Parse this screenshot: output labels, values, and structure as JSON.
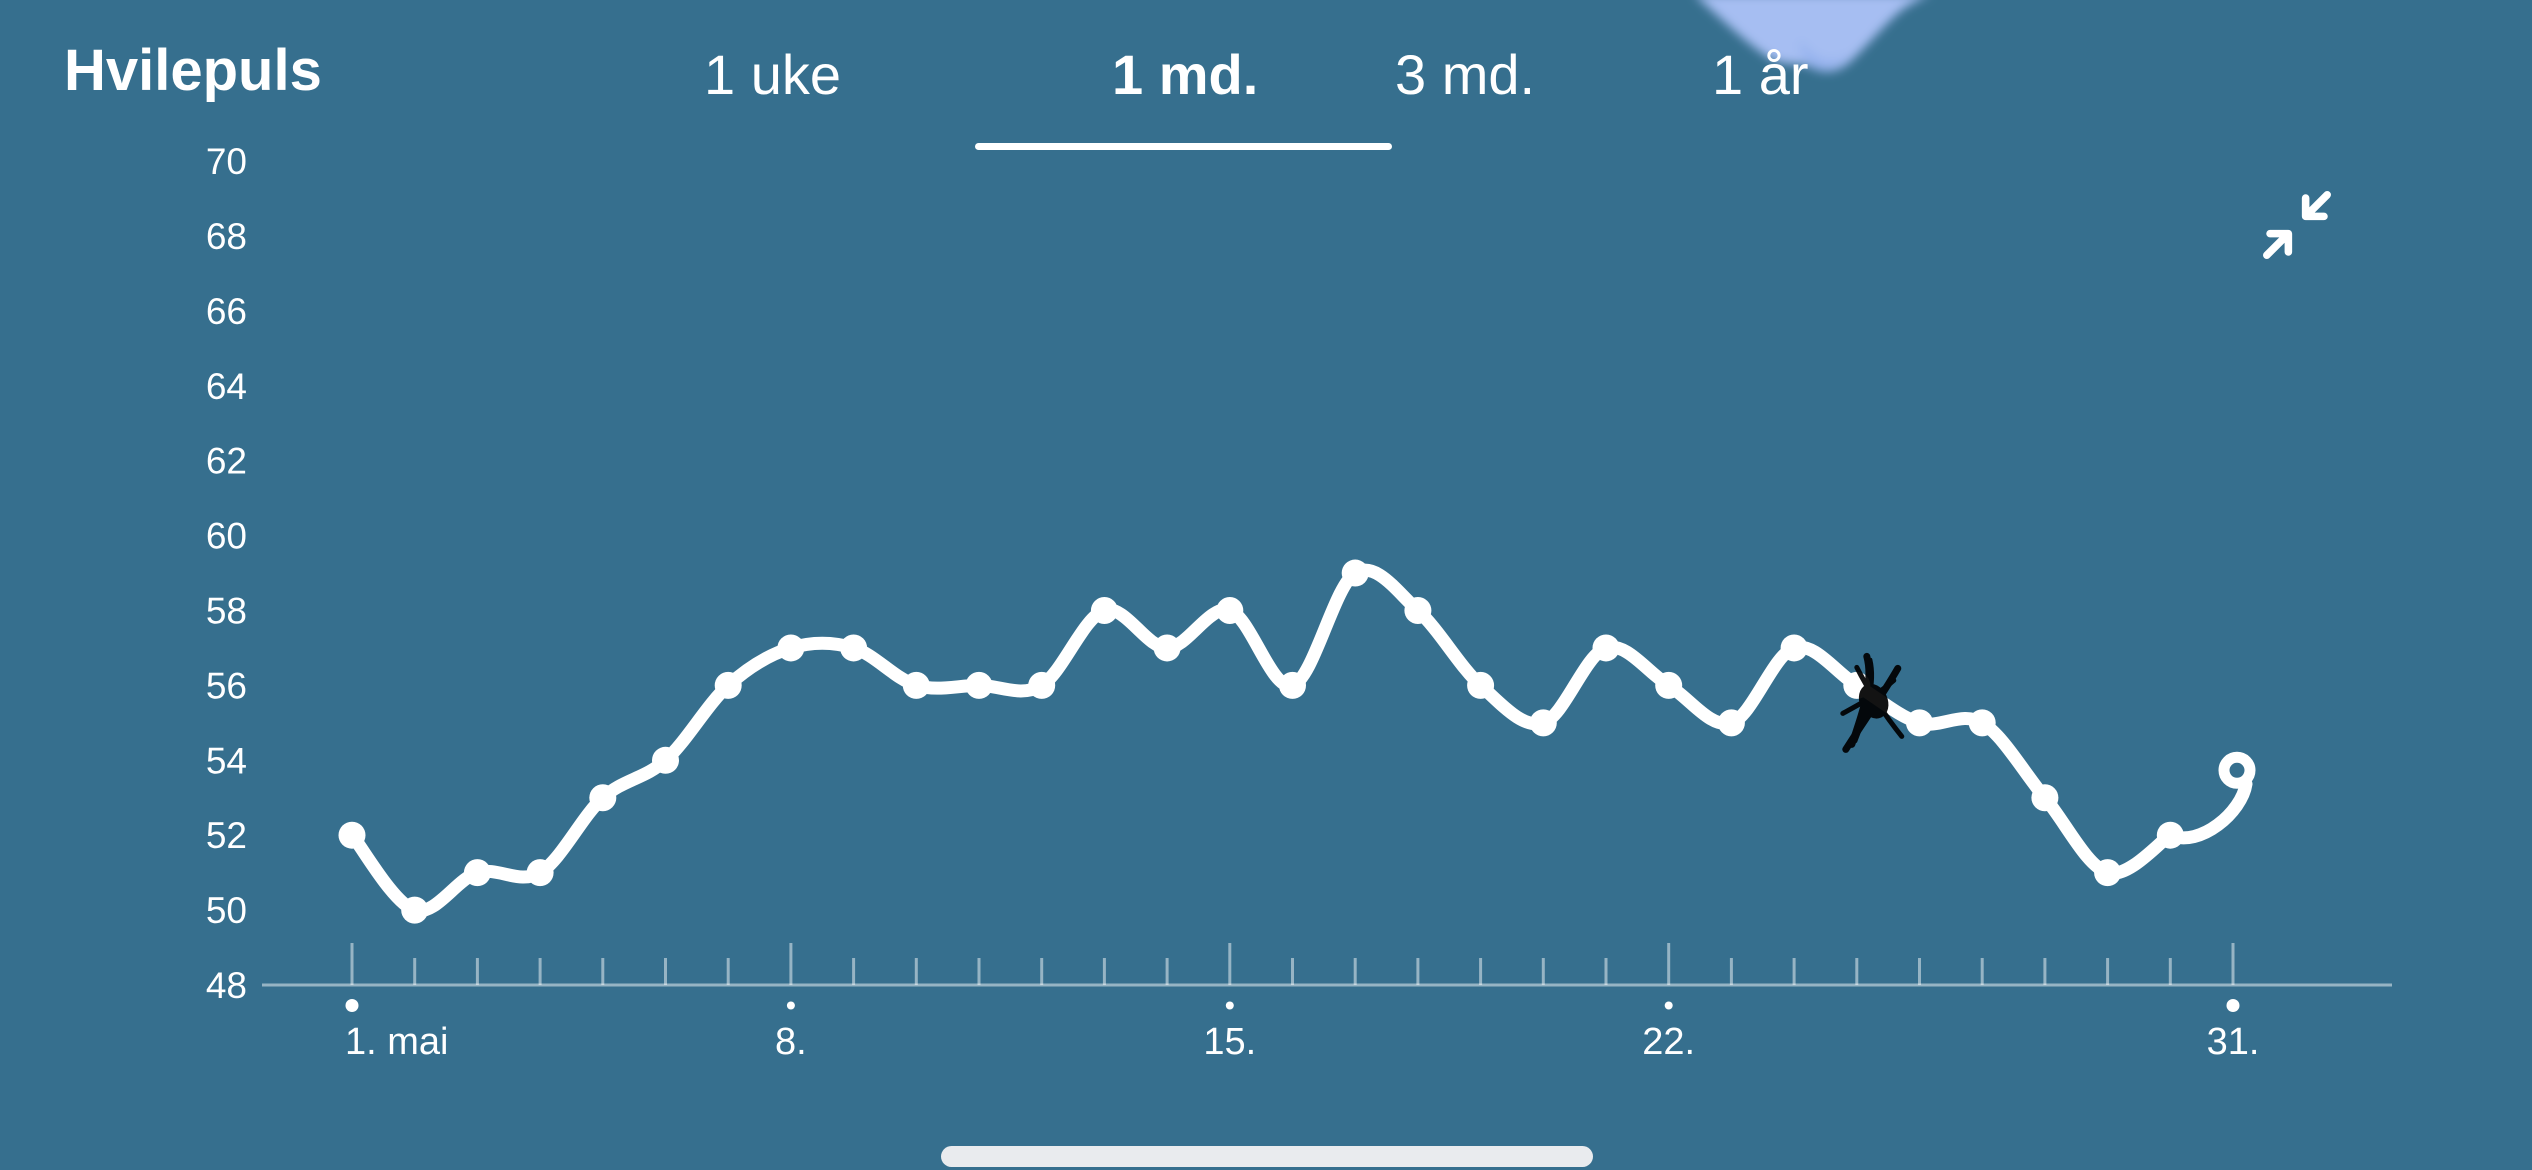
{
  "app": {
    "title": "Hvilepuls"
  },
  "tabs": {
    "items": [
      {
        "id": "1-uke",
        "label": "1 uke",
        "active": false
      },
      {
        "id": "1-md",
        "label": "1 md.",
        "active": true
      },
      {
        "id": "3-md",
        "label": "3 md.",
        "active": false
      },
      {
        "id": "1-ar",
        "label": "1 år",
        "active": false
      }
    ]
  },
  "chart_data": {
    "type": "line",
    "title": "Hvilepuls",
    "x_unit": "day of May",
    "x": [
      1,
      2,
      3,
      4,
      5,
      6,
      7,
      8,
      9,
      10,
      11,
      12,
      13,
      14,
      15,
      16,
      17,
      18,
      19,
      20,
      21,
      22,
      23,
      24,
      25,
      26,
      27,
      28,
      29,
      30,
      31
    ],
    "values": [
      52,
      50,
      51,
      51,
      53,
      54,
      56,
      57,
      57,
      56,
      56,
      56,
      58,
      57,
      58,
      56,
      59,
      58,
      56,
      55,
      57,
      56,
      55,
      57,
      56,
      55,
      55,
      53,
      51,
      52,
      54
    ],
    "ylim": [
      48,
      70
    ],
    "y_ticks": [
      70,
      68,
      66,
      64,
      62,
      60,
      58,
      56,
      54,
      52,
      50,
      48
    ],
    "x_tick_labels": [
      {
        "day": 1,
        "label": "1. mai"
      },
      {
        "day": 8,
        "label": "8."
      },
      {
        "day": 15,
        "label": "15."
      },
      {
        "day": 22,
        "label": "22."
      },
      {
        "day": 31,
        "label": "31."
      }
    ],
    "minor_tick_every_day": true,
    "grid": false,
    "legend": false,
    "line_color": "#FFFFFF",
    "marker": "dot",
    "last_point_marker": "open-ring"
  },
  "annotations": {
    "scribble": {
      "type": "hand-drawn-x",
      "day": 25,
      "color": "#000000"
    },
    "blob": {
      "position": "top-edge-right",
      "color": "#A6BEF2"
    }
  },
  "icons": {
    "collapse": "collapse-diagonal-arrows"
  },
  "colors": {
    "background": "#366F8E",
    "axis": "rgba(255,255,255,0.48)",
    "text": "#FFFFFF",
    "home_indicator": "#E9EBEE"
  }
}
